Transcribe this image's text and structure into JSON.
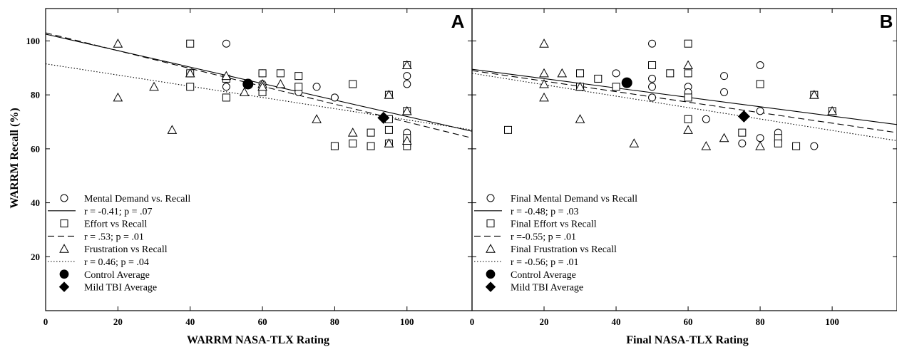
{
  "chart_data": [
    {
      "type": "scatter",
      "panel_label": "A",
      "xlabel": "WARRM NASA-TLX Rating",
      "ylabel": "WARRM Recall (%)",
      "xlim": [
        0,
        118
      ],
      "ylim": [
        0,
        112
      ],
      "xticks": [
        0,
        20,
        40,
        60,
        80,
        100
      ],
      "yticks": [
        20,
        40,
        60,
        80,
        100
      ],
      "grid": false,
      "legend_position": "bottom-left",
      "series": [
        {
          "name": "Mental Demand vs. Recall",
          "marker": "circle",
          "points": [
            [
              50,
              99
            ],
            [
              50,
              86
            ],
            [
              50,
              83
            ],
            [
              60,
              88
            ],
            [
              60,
              84
            ],
            [
              70,
              81
            ],
            [
              75,
              83
            ],
            [
              80,
              79
            ],
            [
              80,
              61
            ],
            [
              100,
              87
            ],
            [
              100,
              84
            ],
            [
              100,
              66
            ],
            [
              100,
              62
            ],
            [
              100,
              61
            ]
          ]
        },
        {
          "name": "Effort  vs Recall",
          "marker": "square",
          "points": [
            [
              40,
              99
            ],
            [
              40,
              88
            ],
            [
              40,
              83
            ],
            [
              50,
              79
            ],
            [
              50,
              86
            ],
            [
              60,
              88
            ],
            [
              60,
              81
            ],
            [
              65,
              88
            ],
            [
              70,
              87
            ],
            [
              70,
              83
            ],
            [
              80,
              61
            ],
            [
              85,
              84
            ],
            [
              85,
              62
            ],
            [
              90,
              66
            ],
            [
              90,
              61
            ],
            [
              95,
              80
            ],
            [
              95,
              71
            ],
            [
              95,
              67
            ],
            [
              95,
              62
            ],
            [
              100,
              91
            ],
            [
              100,
              74
            ],
            [
              100,
              64
            ],
            [
              100,
              61
            ]
          ]
        },
        {
          "name": "Frustration vs Recall",
          "marker": "triangle",
          "points": [
            [
              20,
              99
            ],
            [
              20,
              79
            ],
            [
              30,
              83
            ],
            [
              35,
              67
            ],
            [
              40,
              88
            ],
            [
              50,
              87
            ],
            [
              55,
              81
            ],
            [
              60,
              84
            ],
            [
              60,
              83
            ],
            [
              65,
              84
            ],
            [
              75,
              71
            ],
            [
              85,
              66
            ],
            [
              95,
              80
            ],
            [
              95,
              62
            ],
            [
              100,
              91
            ],
            [
              100,
              74
            ],
            [
              100,
              63
            ]
          ]
        },
        {
          "name": "Control Average",
          "marker": "filled-circle",
          "points": [
            [
              56,
              84
            ]
          ]
        },
        {
          "name": "Mild TBI Average",
          "marker": "filled-diamond",
          "points": [
            [
              93.5,
              71.5
            ]
          ]
        }
      ],
      "fit_lines": [
        {
          "label": "r = -0.41; p = .07",
          "style": "solid",
          "y_at_xmin": 102.5,
          "y_at_xmax": 66.5
        },
        {
          "label": "r = .53; p = .01",
          "style": "dashed",
          "y_at_xmin": 103,
          "y_at_xmax": 64
        },
        {
          "label": "r = 0.46; p = .04",
          "style": "dotted",
          "y_at_xmin": 91.5,
          "y_at_xmax": 67
        }
      ],
      "legend": [
        {
          "kind": "circle",
          "text": "Mental Demand vs. Recall"
        },
        {
          "kind": "solid",
          "text": "r = -0.41; p = .07"
        },
        {
          "kind": "square",
          "text": "Effort  vs Recall"
        },
        {
          "kind": "dashed",
          "text": "r = .53; p = .01"
        },
        {
          "kind": "triangle",
          "text": "Frustration vs Recall"
        },
        {
          "kind": "dotted",
          "text": "r = 0.46; p = .04"
        },
        {
          "kind": "filled-circle",
          "text": "Control Average"
        },
        {
          "kind": "filled-diamond",
          "text": "Mild TBI Average"
        }
      ]
    },
    {
      "type": "scatter",
      "panel_label": "B",
      "xlabel": "Final NASA-TLX Rating",
      "ylabel": "",
      "xlim": [
        0,
        118
      ],
      "ylim": [
        0,
        112
      ],
      "xticks": [
        0,
        20,
        40,
        60,
        80,
        100
      ],
      "yticks": [
        20,
        40,
        60,
        80,
        100
      ],
      "grid": false,
      "legend_position": "bottom-left",
      "series": [
        {
          "name": "Final Mental Demand vs Recall",
          "marker": "circle",
          "points": [
            [
              10,
              67
            ],
            [
              40,
              88
            ],
            [
              50,
              99
            ],
            [
              50,
              86
            ],
            [
              50,
              83
            ],
            [
              50,
              79
            ],
            [
              60,
              88
            ],
            [
              60,
              83
            ],
            [
              60,
              81
            ],
            [
              65,
              71
            ],
            [
              70,
              87
            ],
            [
              70,
              81
            ],
            [
              75,
              62
            ],
            [
              80,
              91
            ],
            [
              80,
              74
            ],
            [
              80,
              64
            ],
            [
              85,
              66
            ],
            [
              95,
              61
            ]
          ]
        },
        {
          "name": "Final Effort vs Recall",
          "marker": "square",
          "points": [
            [
              10,
              67
            ],
            [
              30,
              88
            ],
            [
              30,
              83
            ],
            [
              35,
              86
            ],
            [
              40,
              83
            ],
            [
              50,
              91
            ],
            [
              55,
              88
            ],
            [
              60,
              99
            ],
            [
              60,
              88
            ],
            [
              60,
              79
            ],
            [
              60,
              71
            ],
            [
              75,
              66
            ],
            [
              80,
              84
            ],
            [
              85,
              64
            ],
            [
              85,
              62
            ],
            [
              90,
              61
            ],
            [
              95,
              80
            ],
            [
              100,
              74
            ]
          ]
        },
        {
          "name": "Final Frustration vs Recall",
          "marker": "triangle",
          "points": [
            [
              20,
              99
            ],
            [
              20,
              88
            ],
            [
              20,
              84
            ],
            [
              20,
              79
            ],
            [
              25,
              88
            ],
            [
              30,
              83
            ],
            [
              30,
              71
            ],
            [
              45,
              62
            ],
            [
              60,
              91
            ],
            [
              60,
              67
            ],
            [
              65,
              61
            ],
            [
              70,
              64
            ],
            [
              80,
              61
            ],
            [
              95,
              80
            ],
            [
              100,
              74
            ]
          ]
        },
        {
          "name": "Control Average",
          "marker": "filled-circle",
          "points": [
            [
              43,
              84.5
            ]
          ]
        },
        {
          "name": "Mild TBI Average",
          "marker": "filled-diamond",
          "points": [
            [
              75.5,
              72
            ]
          ]
        }
      ],
      "fit_lines": [
        {
          "label": "r = -0.48; p = .03",
          "style": "solid",
          "y_at_xmin": 89.5,
          "y_at_xmax": 69
        },
        {
          "label": "r =-0.55; p = .01",
          "style": "dashed",
          "y_at_xmin": 89,
          "y_at_xmax": 66
        },
        {
          "label": "r = -0.56; p = .01",
          "style": "dotted",
          "y_at_xmin": 88,
          "y_at_xmax": 63
        }
      ],
      "legend": [
        {
          "kind": "circle",
          "text": "Final Mental Demand vs Recall"
        },
        {
          "kind": "solid",
          "text": "r = -0.48; p = .03"
        },
        {
          "kind": "square",
          "text": "Final Effort vs Recall"
        },
        {
          "kind": "dashed",
          "text": "r =-0.55; p = .01"
        },
        {
          "kind": "triangle",
          "text": "Final Frustration vs Recall"
        },
        {
          "kind": "dotted",
          "text": "r = -0.56; p = .01"
        },
        {
          "kind": "filled-circle",
          "text": "Control Average"
        },
        {
          "kind": "filled-diamond",
          "text": "Mild TBI Average"
        }
      ]
    }
  ]
}
